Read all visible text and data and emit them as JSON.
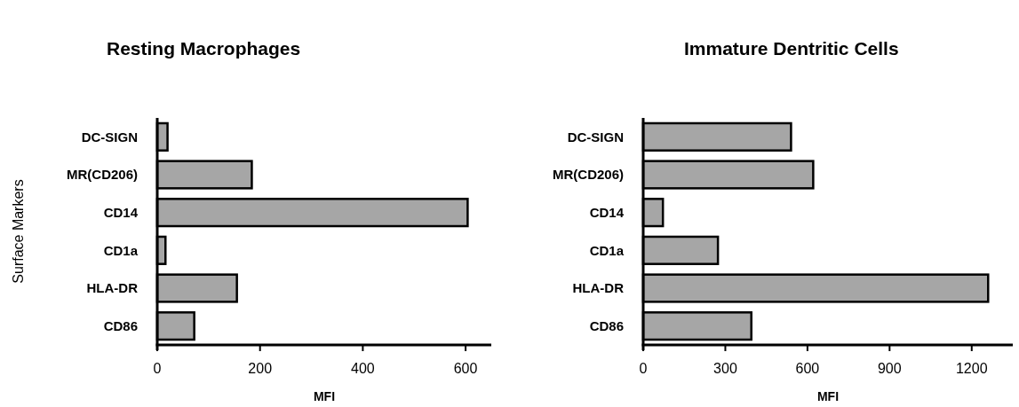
{
  "chart_data": [
    {
      "type": "bar",
      "orientation": "horizontal",
      "title": "Resting Macrophages",
      "xlabel": "MFI",
      "ylabel": "Surface Markers",
      "categories": [
        "DC-SIGN",
        "MR(CD206)",
        "CD14",
        "CD1a",
        "HLA-DR",
        "CD86"
      ],
      "values": [
        20,
        184,
        604,
        16,
        155,
        72
      ],
      "color": "#a6a6a6",
      "xlim": [
        0,
        650
      ],
      "xticks": [
        0,
        200,
        400,
        600
      ],
      "grid": false
    },
    {
      "type": "bar",
      "orientation": "horizontal",
      "title": "Immature Dentritic Cells",
      "xlabel": "MFI",
      "categories": [
        "DC-SIGN",
        "MR(CD206)",
        "CD14",
        "CD1a",
        "HLA-DR",
        "CD86"
      ],
      "values": [
        540,
        621,
        72,
        273,
        1260,
        395
      ],
      "color": "#a6a6a6",
      "xlim": [
        0,
        1350
      ],
      "xticks": [
        0,
        300,
        600,
        900,
        1200
      ],
      "grid": false
    }
  ]
}
